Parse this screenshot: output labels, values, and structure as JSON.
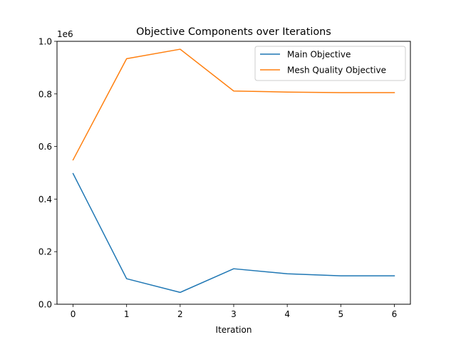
{
  "chart_data": {
    "type": "line",
    "title": "Objective Components over Iterations",
    "xlabel": "Iteration",
    "ylabel": "",
    "y_offset_label": "1e6",
    "x": [
      0,
      1,
      2,
      3,
      4,
      5,
      6
    ],
    "series": [
      {
        "name": "Main Objective",
        "color": "#1f77b4",
        "values": [
          0.497,
          0.097,
          0.045,
          0.135,
          0.116,
          0.108,
          0.108
        ]
      },
      {
        "name": "Mesh Quality Objective",
        "color": "#ff7f0e",
        "values": [
          0.549,
          0.934,
          0.97,
          0.811,
          0.807,
          0.805,
          0.805
        ]
      }
    ],
    "xlim": [
      -0.3,
      6.3
    ],
    "ylim": [
      0.0,
      1.0
    ],
    "xticks": [
      0,
      1,
      2,
      3,
      4,
      5,
      6
    ],
    "xtick_labels": [
      "0",
      "1",
      "2",
      "3",
      "4",
      "5",
      "6"
    ],
    "yticks": [
      0.0,
      0.2,
      0.4,
      0.6,
      0.8,
      1.0
    ],
    "ytick_labels": [
      "0.0",
      "0.2",
      "0.4",
      "0.6",
      "0.8",
      "1.0"
    ],
    "grid": false,
    "legend_position": "top-right"
  }
}
